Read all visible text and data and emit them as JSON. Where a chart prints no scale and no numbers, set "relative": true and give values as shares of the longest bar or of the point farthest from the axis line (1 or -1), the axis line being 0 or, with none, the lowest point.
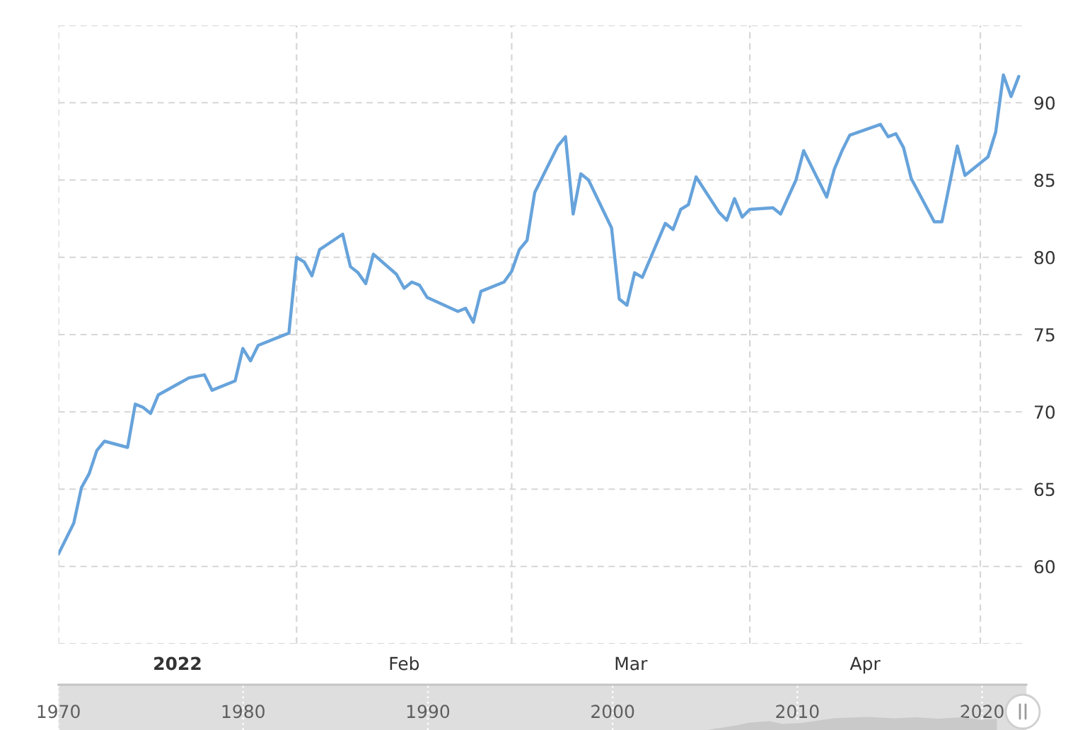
{
  "chart_data": [
    {
      "type": "line",
      "x": [
        "2022-01-01",
        "2022-01-03",
        "2022-01-04",
        "2022-01-05",
        "2022-01-06",
        "2022-01-07",
        "2022-01-10",
        "2022-01-11",
        "2022-01-12",
        "2022-01-13",
        "2022-01-14",
        "2022-01-18",
        "2022-01-20",
        "2022-01-21",
        "2022-01-24",
        "2022-01-25",
        "2022-01-26",
        "2022-01-27",
        "2022-01-31",
        "2022-02-01",
        "2022-02-02",
        "2022-02-03",
        "2022-02-04",
        "2022-02-07",
        "2022-02-08",
        "2022-02-09",
        "2022-02-10",
        "2022-02-11",
        "2022-02-14",
        "2022-02-15",
        "2022-02-16",
        "2022-02-17",
        "2022-02-18",
        "2022-02-22",
        "2022-02-23",
        "2022-02-24",
        "2022-02-25",
        "2022-02-28",
        "2022-03-01",
        "2022-03-02",
        "2022-03-03",
        "2022-03-04",
        "2022-03-07",
        "2022-03-08",
        "2022-03-09",
        "2022-03-10",
        "2022-03-11",
        "2022-03-14",
        "2022-03-15",
        "2022-03-16",
        "2022-03-17",
        "2022-03-18",
        "2022-03-21",
        "2022-03-22",
        "2022-03-23",
        "2022-03-24",
        "2022-03-25",
        "2022-03-28",
        "2022-03-29",
        "2022-03-30",
        "2022-03-31",
        "2022-04-01",
        "2022-04-04",
        "2022-04-05",
        "2022-04-06",
        "2022-04-07",
        "2022-04-08",
        "2022-04-11",
        "2022-04-12",
        "2022-04-13",
        "2022-04-14",
        "2022-04-18",
        "2022-04-19",
        "2022-04-20",
        "2022-04-21",
        "2022-04-22",
        "2022-04-25",
        "2022-04-26",
        "2022-04-28",
        "2022-04-29",
        "2022-05-02",
        "2022-05-03",
        "2022-05-04",
        "2022-05-05",
        "2022-05-06"
      ],
      "series": [
        {
          "color": "#67a3db",
          "values": [
            60.8,
            62.8,
            65.1,
            66.0,
            67.5,
            68.1,
            67.7,
            70.5,
            70.3,
            69.9,
            71.1,
            72.2,
            72.4,
            71.4,
            72.0,
            74.1,
            73.3,
            74.3,
            75.1,
            80.0,
            79.7,
            78.8,
            80.5,
            81.5,
            79.4,
            79.0,
            78.3,
            80.2,
            78.9,
            78.0,
            78.4,
            78.2,
            77.4,
            76.5,
            76.7,
            75.8,
            77.8,
            78.4,
            79.1,
            80.5,
            81.1,
            84.2,
            87.2,
            87.8,
            82.8,
            85.4,
            85.0,
            81.9,
            77.3,
            76.9,
            79.0,
            78.7,
            82.2,
            81.8,
            83.1,
            83.4,
            85.2,
            82.9,
            82.4,
            83.8,
            82.6,
            83.1,
            83.2,
            82.8,
            83.9,
            85.0,
            86.9,
            83.9,
            85.7,
            86.9,
            87.9,
            88.6,
            87.8,
            88.0,
            87.1,
            85.1,
            82.3,
            82.3,
            87.2,
            85.3,
            86.5,
            88.1,
            91.8,
            90.4,
            91.7
          ]
        }
      ],
      "xlim": [
        "2022-01-01",
        "2022-05-07"
      ],
      "xticks": [
        {
          "value": "2022-01-01",
          "label": null
        },
        {
          "value": "2022-01-16T12:00",
          "label": "2022"
        },
        {
          "value": "2022-02-01",
          "label": null
        },
        {
          "value": "2022-02-15",
          "label": "Feb"
        },
        {
          "value": "2022-03-01",
          "label": null
        },
        {
          "value": "2022-03-16T12:00",
          "label": "Mar"
        },
        {
          "value": "2022-04-01",
          "label": null
        },
        {
          "value": "2022-04-16",
          "label": "Apr"
        },
        {
          "value": "2022-05-01",
          "label": null
        }
      ],
      "ylim": [
        55,
        95
      ],
      "yticks": [
        {
          "value": 55,
          "label": null
        },
        60,
        65,
        70,
        75,
        80,
        85,
        90,
        {
          "value": 95,
          "label": null
        }
      ],
      "grid": true
    },
    {
      "type": "area",
      "x": [
        2005.1,
        2006.7,
        2007.4,
        2008.5,
        2009.2,
        2010.3,
        2012.0,
        2013.8,
        2015.3,
        2016.4,
        2017.6,
        2018.9,
        2019.9,
        2020.8
      ],
      "series": [
        {
          "color": "#c9c9c9",
          "values": [
            0,
            0.35,
            0.57,
            0.68,
            0.46,
            0.55,
            0.9,
            1,
            0.89,
            0.97,
            0.86,
            0.97,
            0.78,
            0.85
          ]
        }
      ],
      "relative": true,
      "xlim": [
        1970,
        2022.4
      ],
      "xticks": [
        1970,
        1980,
        1990,
        2000,
        2010,
        2020
      ],
      "grid": "x"
    }
  ]
}
